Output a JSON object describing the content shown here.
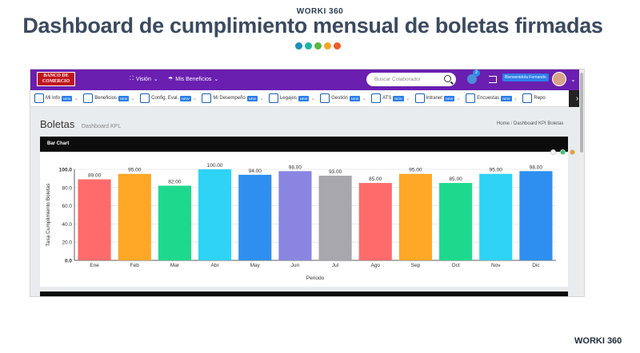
{
  "header": {
    "brand": "WORKI 360",
    "headline": "Dashboard de cumplimiento mensual de boletas firmadas",
    "dots": [
      "#1d8fb8",
      "#19b6a4",
      "#5ab645",
      "#f4a52a",
      "#ef5a2a"
    ]
  },
  "app": {
    "logo_line1": "BANCO DE",
    "logo_line2": "COMERCIO",
    "nav": [
      {
        "label": "Visión",
        "icon": "expand-icon"
      },
      {
        "label": "Mis Beneficios",
        "icon": "umbrella-icon"
      }
    ],
    "search_placeholder": "Buscar Colaborador",
    "notification_count": "2",
    "welcome": "Bienvenido/a Fernando",
    "modules": [
      {
        "label": "Mi Info",
        "badge": "NEW",
        "icon": "id-card-icon"
      },
      {
        "label": "Beneficios",
        "badge": "NEW",
        "icon": "gift-icon"
      },
      {
        "label": "Config. Eval.",
        "badge": "NEW",
        "icon": "settings-icon"
      },
      {
        "label": "Mi Desempeño",
        "badge": "NEW",
        "icon": "person-icon"
      },
      {
        "label": "Legajos",
        "badge": "NEW",
        "icon": "folder-icon"
      },
      {
        "label": "Gestión",
        "badge": "NEW",
        "icon": "briefcase-icon"
      },
      {
        "label": "ATS",
        "badge": "NEW",
        "icon": "ats-icon"
      },
      {
        "label": "Intranet",
        "badge": "NEW",
        "icon": "globe-icon"
      },
      {
        "label": "Encuestas",
        "badge": "NEW",
        "icon": "survey-icon"
      },
      {
        "label": "Repo",
        "badge": "",
        "icon": "report-icon"
      }
    ],
    "page_title": "Boletas",
    "page_subtitle": "Dashboard KPL",
    "breadcrumb_home": "Home",
    "breadcrumb_sep": "/",
    "breadcrumb_current": "Dashboard KPI Boletas",
    "card_title": "Bar Chart",
    "card_icon_colors": [
      "#ffffff",
      "#2ecc71",
      "#f39c12",
      "#e74c3c"
    ]
  },
  "chart_data": {
    "type": "bar",
    "categories": [
      "Ene",
      "Feb",
      "Mar",
      "Abr",
      "May",
      "Jun",
      "Jul",
      "Ago",
      "Sep",
      "Oct",
      "Nov",
      "Dic"
    ],
    "values": [
      89.0,
      95.0,
      82.0,
      100.0,
      94.0,
      98.0,
      93.0,
      85.0,
      95.0,
      85.0,
      95.0,
      98.0
    ],
    "value_labels": [
      "89.00",
      "95.00",
      "82.00",
      "100.00",
      "94.00",
      "98.00",
      "93.00",
      "85.00",
      "95.00",
      "85.00",
      "95.00",
      "98.00"
    ],
    "colors": [
      "#ff6b6b",
      "#ffa726",
      "#1ed98d",
      "#2ed3f5",
      "#2f8ff0",
      "#8a85e0",
      "#a7a7ad",
      "#ff6b6b",
      "#ffa726",
      "#1ed98d",
      "#2ed3f5",
      "#2f8ff0"
    ],
    "title": "",
    "xlabel": "Periodo",
    "ylabel": "Tasa Cumplimiento Boletas",
    "ylim": [
      0,
      100
    ],
    "yticks": [
      "0.0",
      "20.0",
      "40.0",
      "60.0",
      "80.0",
      "100.0"
    ],
    "grid": true
  },
  "footer": {
    "brand": "WORKI 360"
  }
}
